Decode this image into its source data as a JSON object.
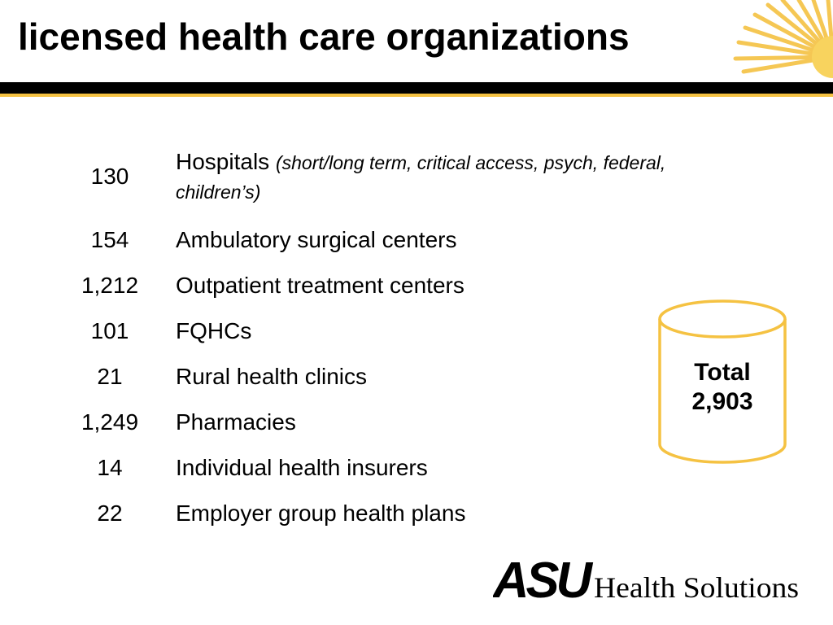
{
  "slide": {
    "title": "licensed health care organizations",
    "accent_color": "#f5c242"
  },
  "rows": [
    {
      "count": "130",
      "label": "Hospitals",
      "note_line1": "(short/long term, critical access, psych, federal,",
      "note_line2": "children’s)"
    },
    {
      "count": "154",
      "label": "Ambulatory surgical centers"
    },
    {
      "count": "1,212",
      "label": "Outpatient treatment centers"
    },
    {
      "count": "101",
      "label": "FQHCs"
    },
    {
      "count": "21",
      "label": "Rural health clinics"
    },
    {
      "count": "1,249",
      "label": "Pharmacies"
    },
    {
      "count": "14",
      "label": "Individual health insurers"
    },
    {
      "count": "22",
      "label": "Employer group health plans"
    }
  ],
  "total": {
    "label": "Total",
    "value": "2,903"
  },
  "logo": {
    "mark": "ASU",
    "text": "Health Solutions"
  }
}
